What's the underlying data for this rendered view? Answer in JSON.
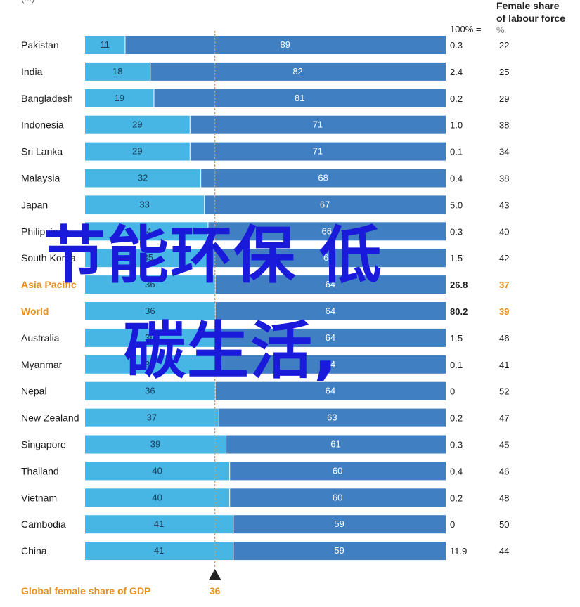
{
  "chart_data": {
    "type": "bar",
    "stacked": true,
    "orientation": "horizontal",
    "title_partial": "(...)",
    "total_label": "100% =",
    "total_unit": "",
    "female_lf_header": [
      "Female share",
      "of labour force"
    ],
    "female_lf_unit": "%",
    "reference_label": "Global female share of GDP",
    "reference_value": 36,
    "xlim": [
      0,
      100
    ],
    "colors": {
      "female": "#47b6e5",
      "male": "#3f7fc2",
      "highlight": "#e8901c",
      "reference_line": "#d69a4a",
      "triangle": "#222222"
    },
    "rows": [
      {
        "country": "Pakistan",
        "female": 11,
        "male": 89,
        "total": "0.3",
        "female_lf": "22",
        "highlight": false
      },
      {
        "country": "India",
        "female": 18,
        "male": 82,
        "total": "2.4",
        "female_lf": "25",
        "highlight": false
      },
      {
        "country": "Bangladesh",
        "female": 19,
        "male": 81,
        "total": "0.2",
        "female_lf": "29",
        "highlight": false
      },
      {
        "country": "Indonesia",
        "female": 29,
        "male": 71,
        "total": "1.0",
        "female_lf": "38",
        "highlight": false
      },
      {
        "country": "Sri Lanka",
        "female": 29,
        "male": 71,
        "total": "0.1",
        "female_lf": "34",
        "highlight": false
      },
      {
        "country": "Malaysia",
        "female": 32,
        "male": 68,
        "total": "0.4",
        "female_lf": "38",
        "highlight": false
      },
      {
        "country": "Japan",
        "female": 33,
        "male": 67,
        "total": "5.0",
        "female_lf": "43",
        "highlight": false
      },
      {
        "country": "Philippines",
        "female": 34,
        "male": 66,
        "total": "0.3",
        "female_lf": "40",
        "highlight": false
      },
      {
        "country": "South Korea",
        "female": 35,
        "male": 65,
        "total": "1.5",
        "female_lf": "42",
        "highlight": false
      },
      {
        "country": "Asia Pacific",
        "female": 36,
        "male": 64,
        "total": "26.8",
        "female_lf": "37",
        "highlight": true
      },
      {
        "country": "World",
        "female": 36,
        "male": 64,
        "total": "80.2",
        "female_lf": "39",
        "highlight": true
      },
      {
        "country": "Australia",
        "female": 36,
        "male": 64,
        "total": "1.5",
        "female_lf": "46",
        "highlight": false
      },
      {
        "country": "Myanmar",
        "female": 36,
        "male": 64,
        "total": "0.1",
        "female_lf": "41",
        "highlight": false
      },
      {
        "country": "Nepal",
        "female": 36,
        "male": 64,
        "total": "0",
        "female_lf": "52",
        "highlight": false
      },
      {
        "country": "New Zealand",
        "female": 37,
        "male": 63,
        "total": "0.2",
        "female_lf": "47",
        "highlight": false
      },
      {
        "country": "Singapore",
        "female": 39,
        "male": 61,
        "total": "0.3",
        "female_lf": "45",
        "highlight": false
      },
      {
        "country": "Thailand",
        "female": 40,
        "male": 60,
        "total": "0.4",
        "female_lf": "46",
        "highlight": false
      },
      {
        "country": "Vietnam",
        "female": 40,
        "male": 60,
        "total": "0.2",
        "female_lf": "48",
        "highlight": false
      },
      {
        "country": "Cambodia",
        "female": 41,
        "male": 59,
        "total": "0",
        "female_lf": "50",
        "highlight": false
      },
      {
        "country": "China",
        "female": 41,
        "male": 59,
        "total": "11.9",
        "female_lf": "44",
        "highlight": false
      }
    ]
  },
  "overlay": {
    "line1": "节能环保 低",
    "line2": "碳生活,"
  }
}
